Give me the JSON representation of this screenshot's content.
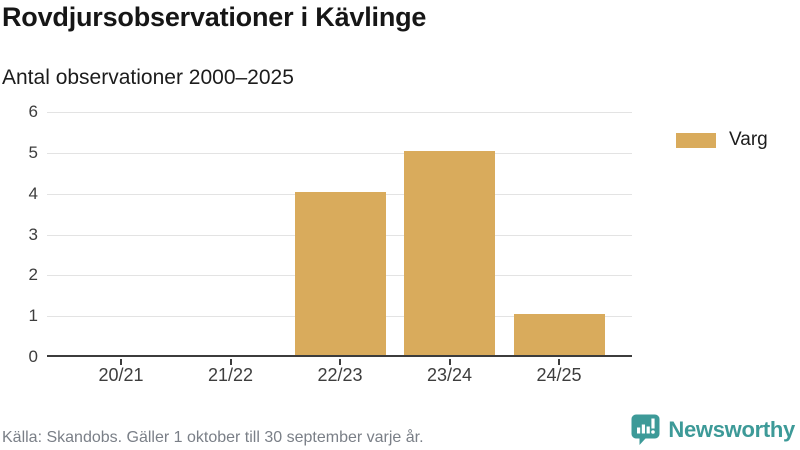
{
  "header": {
    "title": "Rovdjursobservationer i Kävlinge",
    "subtitle": "Antal observationer 2000–2025"
  },
  "chart_data": {
    "type": "bar",
    "title": "Rovdjursobservationer i Kävlinge",
    "subtitle": "Antal observationer 2000–2025",
    "categories": [
      "20/21",
      "21/22",
      "22/23",
      "23/24",
      "24/25"
    ],
    "series": [
      {
        "name": "Varg",
        "color": "#D9AB5C",
        "values": [
          0,
          0,
          4,
          5,
          1
        ]
      }
    ],
    "xlabel": "",
    "ylabel": "",
    "ylim": [
      0,
      6
    ],
    "yticks": [
      0,
      1,
      2,
      3,
      4,
      5,
      6
    ],
    "grid": "horizontal",
    "legend_position": "right"
  },
  "legend": {
    "items": [
      {
        "label": "Varg",
        "color": "#D9AB5C"
      }
    ]
  },
  "footer": {
    "source": "Källa: Skandobs. Gäller 1 oktober till 30 september varje år.",
    "brand": "Newsworthy"
  },
  "colors": {
    "bar": "#D9AB5C",
    "brand_teal": "#3D9A98",
    "grid": "#E3E3E3",
    "axis": "#3C3C3C",
    "text": "#161616",
    "muted_text": "#7A7F87"
  }
}
